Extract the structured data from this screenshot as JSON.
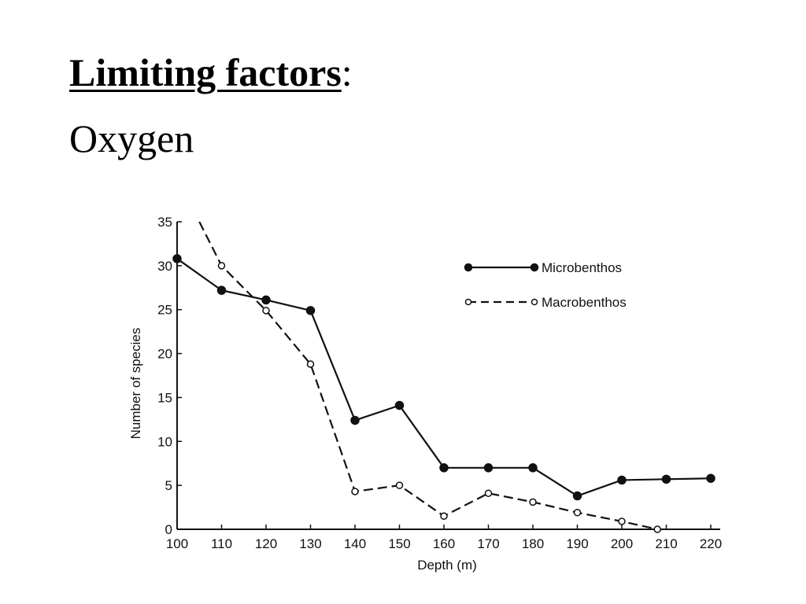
{
  "slide": {
    "title": "Limiting factors",
    "title_colon": ":",
    "subtitle": "Oxygen"
  },
  "chart_data": {
    "type": "line",
    "title": "",
    "xlabel": "Depth (m)",
    "ylabel": "Number of species",
    "xlim": [
      100,
      220
    ],
    "ylim": [
      0,
      35
    ],
    "xticks": [
      100,
      110,
      120,
      130,
      140,
      150,
      160,
      170,
      180,
      190,
      200,
      210,
      220
    ],
    "yticks": [
      0,
      5,
      10,
      15,
      20,
      25,
      30,
      35
    ],
    "legend_position": "top-right",
    "grid": false,
    "series": [
      {
        "name": "Microbenthos",
        "line_style": "solid",
        "marker": "filled-circle",
        "points": [
          [
            100,
            30.8
          ],
          [
            110,
            27.2
          ],
          [
            120,
            26.1
          ],
          [
            130,
            24.9
          ],
          [
            140,
            12.4
          ],
          [
            150,
            14.1
          ],
          [
            160,
            7.0
          ],
          [
            170,
            7.0
          ],
          [
            180,
            7.0
          ],
          [
            190,
            3.8
          ],
          [
            200,
            5.6
          ],
          [
            210,
            5.7
          ],
          [
            220,
            5.8
          ]
        ]
      },
      {
        "name": "Macrobenthos",
        "line_style": "dashed",
        "marker": "open-circle",
        "line_start": [
          105,
          35
        ],
        "points": [
          [
            110,
            30.0
          ],
          [
            120,
            24.9
          ],
          [
            130,
            18.8
          ],
          [
            140,
            4.3
          ],
          [
            150,
            5.0
          ],
          [
            160,
            1.5
          ],
          [
            170,
            4.1
          ],
          [
            180,
            3.1
          ],
          [
            190,
            1.9
          ],
          [
            200,
            0.9
          ],
          [
            208,
            0.0
          ]
        ]
      }
    ],
    "colors": {
      "axis": "#111111",
      "line": "#111111",
      "marker_fill_open": "#ffffff"
    }
  }
}
